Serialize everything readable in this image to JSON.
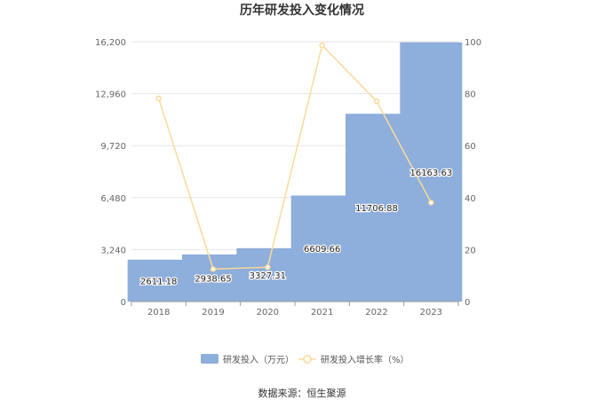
{
  "chart_data": {
    "type": "bar",
    "title": "历年研发投入变化情况",
    "categories": [
      "2018",
      "2019",
      "2020",
      "2021",
      "2022",
      "2023"
    ],
    "series": [
      {
        "name": "研发投入（万元）",
        "type": "bar",
        "axis": "left",
        "color": "#8eaedb",
        "values": [
          2611.18,
          2938.65,
          3327.31,
          6609.66,
          11706.88,
          16163.63
        ],
        "labels": [
          "2611.18",
          "2938.65",
          "3327.31",
          "6609.66",
          "11706.88",
          "16163.63"
        ]
      },
      {
        "name": "研发投入增长率（%）",
        "type": "line",
        "axis": "right",
        "color": "#fbd99b",
        "values": [
          78.2,
          12.5,
          13.2,
          98.6,
          77.1,
          38.1
        ]
      }
    ],
    "y_left": {
      "ylim": [
        0,
        16200
      ],
      "ticks": [
        "0",
        "3,240",
        "6,480",
        "9,720",
        "12,960",
        "16,200"
      ]
    },
    "y_right": {
      "ylim": [
        0,
        100
      ],
      "ticks": [
        "0",
        "20",
        "40",
        "60",
        "80",
        "100"
      ]
    },
    "grid": true,
    "legend_position": "bottom",
    "source": "数据来源：恒生聚源"
  }
}
